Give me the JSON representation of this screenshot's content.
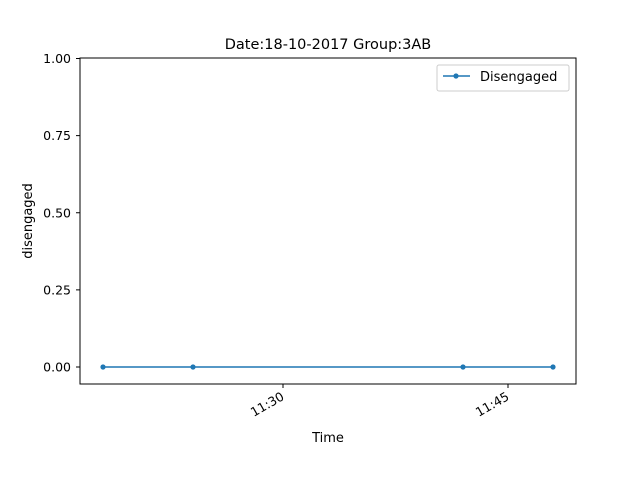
{
  "chart_data": {
    "type": "line",
    "title": "Date:18-10-2017  Group:3AB",
    "xlabel": "Time",
    "ylabel": "disengaged",
    "x_ticks": [
      "11:30",
      "11:45"
    ],
    "y_ticks": [
      "0.00",
      "0.25",
      "0.50",
      "0.75",
      "1.00"
    ],
    "ylim": [
      0,
      1
    ],
    "legend_position": "upper right",
    "grid": false,
    "series": [
      {
        "name": "Disengaged",
        "color": "#1f77b4",
        "x": [
          "11:18",
          "11:24",
          "11:42",
          "11:48"
        ],
        "y": [
          0,
          0,
          0,
          0
        ]
      }
    ]
  }
}
